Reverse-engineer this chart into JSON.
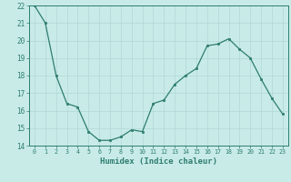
{
  "x": [
    0,
    1,
    2,
    3,
    4,
    5,
    6,
    7,
    8,
    9,
    10,
    11,
    12,
    13,
    14,
    15,
    16,
    17,
    18,
    19,
    20,
    21,
    22,
    23
  ],
  "y": [
    22,
    21,
    18,
    16.4,
    16.2,
    14.8,
    14.3,
    14.3,
    14.5,
    14.9,
    14.8,
    16.4,
    16.6,
    17.5,
    18.0,
    18.4,
    19.7,
    19.8,
    20.1,
    19.5,
    19.0,
    17.8,
    16.7,
    15.8
  ],
  "xlabel": "Humidex (Indice chaleur)",
  "xlim": [
    -0.5,
    23.5
  ],
  "ylim": [
    14,
    22
  ],
  "yticks": [
    14,
    15,
    16,
    17,
    18,
    19,
    20,
    21,
    22
  ],
  "xticks": [
    0,
    1,
    2,
    3,
    4,
    5,
    6,
    7,
    8,
    9,
    10,
    11,
    12,
    13,
    14,
    15,
    16,
    17,
    18,
    19,
    20,
    21,
    22,
    23
  ],
  "line_color": "#2e7d6e",
  "marker_color": "#2e7d6e",
  "bg_color": "#c8ebe8",
  "grid_color": "#b0d8d4",
  "axis_color": "#2e7d6e",
  "tick_label_color": "#2e7d6e",
  "xlabel_color": "#2e7d6e"
}
